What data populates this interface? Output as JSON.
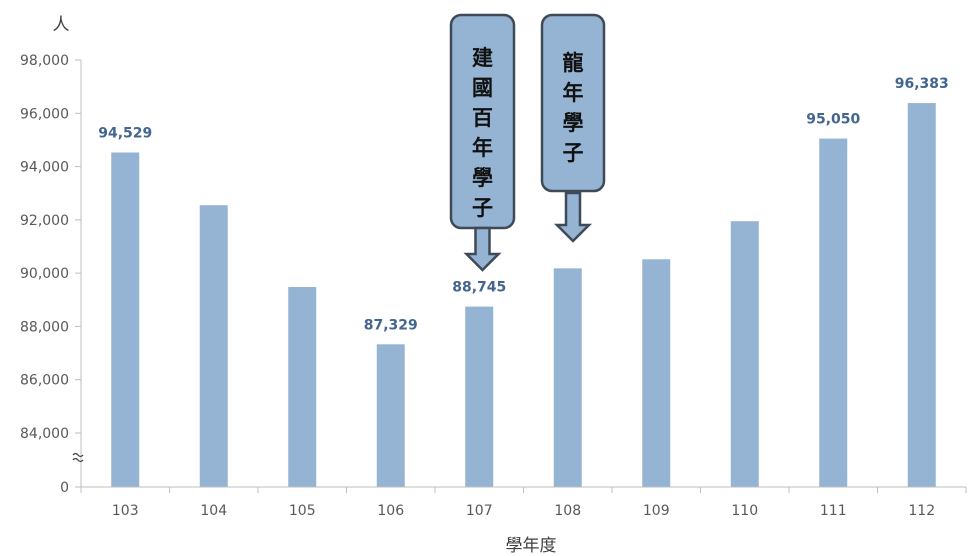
{
  "chart_data": {
    "type": "bar",
    "ylabel": "人",
    "xlabel": "學年度",
    "categories": [
      "103",
      "104",
      "105",
      "106",
      "107",
      "108",
      "109",
      "110",
      "111",
      "112"
    ],
    "values": [
      94529,
      92550,
      89480,
      87329,
      88745,
      90180,
      90520,
      91950,
      95050,
      96383
    ],
    "data_labels": {
      "0": "94,529",
      "3": "87,329",
      "4": "88,745",
      "8": "95,050",
      "9": "96,383"
    },
    "y_ticks": [
      {
        "value": 98000,
        "label": "98,000"
      },
      {
        "value": 96000,
        "label": "96,000"
      },
      {
        "value": 94000,
        "label": "94,000"
      },
      {
        "value": 92000,
        "label": "92,000"
      },
      {
        "value": 90000,
        "label": "90,000"
      },
      {
        "value": 88000,
        "label": "88,000"
      },
      {
        "value": 86000,
        "label": "86,000"
      },
      {
        "value": 84000,
        "label": "84,000"
      },
      {
        "value": 0,
        "label": "0"
      }
    ],
    "ylim": [
      84000,
      98000
    ],
    "axis_break": true,
    "bar_color": "#95b3d2",
    "label_color": "#44658f",
    "annotations": [
      {
        "text": "建國百年學子",
        "category": "107"
      },
      {
        "text": "龍年學子",
        "category": "108"
      }
    ],
    "annotation_fill": "#95b3d2"
  }
}
